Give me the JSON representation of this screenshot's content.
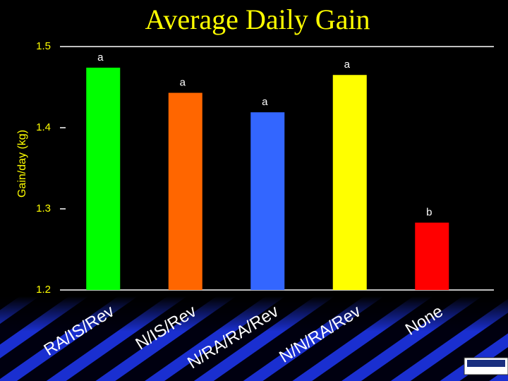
{
  "chart_data": {
    "type": "bar",
    "title": "Average Daily Gain",
    "y_label": "Gain/day (kg)",
    "categories": [
      "RA/IS/Rev",
      "N/IS/Rev",
      "N/RA/RA/Rev",
      "N/N/RA/Rev",
      "None"
    ],
    "values": [
      1.474,
      1.443,
      1.419,
      1.465,
      1.283
    ],
    "annotations": [
      "a",
      "a",
      "a",
      "a",
      "b"
    ],
    "colors": [
      "#00ff00",
      "#ff6600",
      "#3366ff",
      "#ffff00",
      "#ff0000"
    ],
    "ylim": [
      1.2,
      1.5
    ],
    "yticks": [
      1.2,
      1.3,
      1.4,
      1.5
    ]
  }
}
